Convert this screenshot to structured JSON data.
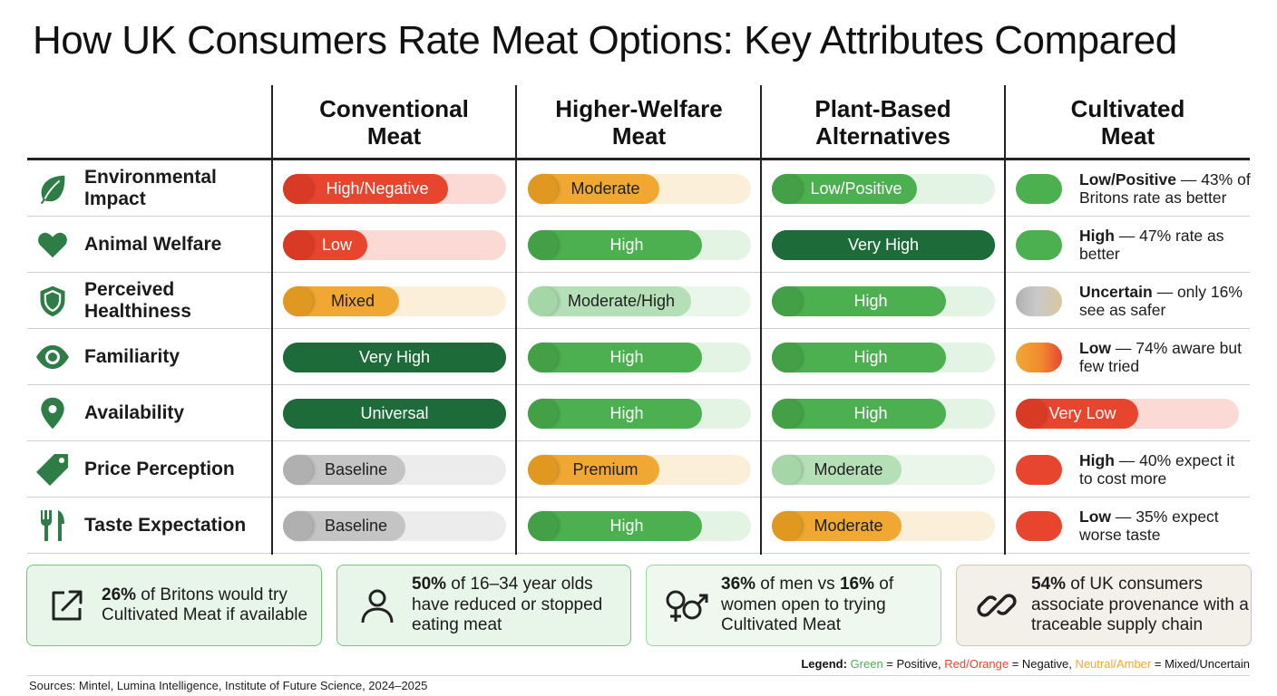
{
  "title": "How UK Consumers Rate Meat Options: Key Attributes Compared",
  "columns": [
    {
      "line1": "Conventional",
      "line2": "Meat"
    },
    {
      "line1": "Higher-Welfare",
      "line2": "Meat"
    },
    {
      "line1": "Plant-Based",
      "line2": "Alternatives"
    },
    {
      "line1": "Cultivated",
      "line2": "Meat"
    }
  ],
  "colors": {
    "green_dark": "#1e6b3a",
    "green": "#4caf50",
    "green_light": "#a5d6a7",
    "red": "#e8452f",
    "amber": "#f0a832",
    "grey": "#bdbdbd"
  },
  "rows": [
    {
      "label1": "Environmental",
      "label2": "Impact",
      "icon": "leaf-icon",
      "cells": [
        {
          "text": "High/Negative",
          "level": 0.74,
          "tone": "red"
        },
        {
          "text": "Moderate",
          "level": 0.59,
          "tone": "amber"
        },
        {
          "text": "Low/Positive",
          "level": 0.65,
          "tone": "green"
        }
      ],
      "cm": {
        "bold": "Low/Positive",
        "rest": " — 43% of Britons rate as better",
        "tone": "green"
      }
    },
    {
      "label1": "Animal Welfare",
      "label2": "",
      "icon": "heart-icon",
      "cells": [
        {
          "text": "Low",
          "level": 0.38,
          "tone": "red"
        },
        {
          "text": "High",
          "level": 0.78,
          "tone": "green"
        },
        {
          "text": "Very High",
          "level": 1.0,
          "tone": "green_dark"
        }
      ],
      "cm": {
        "bold": "High",
        "rest": " — 47% rate as better",
        "tone": "green"
      }
    },
    {
      "label1": "Perceived",
      "label2": "Healthiness",
      "icon": "shield-icon",
      "cells": [
        {
          "text": "Mixed",
          "level": 0.52,
          "tone": "amber"
        },
        {
          "text": "Moderate/High",
          "level": 0.73,
          "tone": "green_light"
        },
        {
          "text": "High",
          "level": 0.78,
          "tone": "green"
        }
      ],
      "cm": {
        "bold": "Uncertain",
        "rest": " — only 16% see as safer",
        "tone": "grey"
      }
    },
    {
      "label1": "Familiarity",
      "label2": "",
      "icon": "eye-icon",
      "cells": [
        {
          "text": "Very High",
          "level": 1.0,
          "tone": "green_dark"
        },
        {
          "text": "High",
          "level": 0.78,
          "tone": "green"
        },
        {
          "text": "High",
          "level": 0.78,
          "tone": "green"
        }
      ],
      "cm": {
        "bold": "Low",
        "rest": " — 74% aware but few tried",
        "tone": "amber"
      }
    },
    {
      "label1": "Availability",
      "label2": "",
      "icon": "location-pin-icon",
      "cells": [
        {
          "text": "Universal",
          "level": 1.0,
          "tone": "green_dark"
        },
        {
          "text": "High",
          "level": 0.78,
          "tone": "green"
        },
        {
          "text": "High",
          "level": 0.78,
          "tone": "green"
        }
      ],
      "cm": {
        "bold": "Very Low",
        "tone": "red",
        "level": 0.55,
        "full": true
      }
    },
    {
      "label1": "Price Perception",
      "label2": "",
      "icon": "price-tag-icon",
      "cells": [
        {
          "text": "Baseline",
          "level": 0.55,
          "tone": "grey"
        },
        {
          "text": "Premium",
          "level": 0.59,
          "tone": "amber"
        },
        {
          "text": "Moderate",
          "level": 0.58,
          "tone": "green_light"
        }
      ],
      "cm": {
        "bold": "High",
        "rest": " — 40% expect it to cost more",
        "tone": "red"
      }
    },
    {
      "label1": "Taste Expectation",
      "label2": "",
      "icon": "fork-knife-icon",
      "cells": [
        {
          "text": "Baseline",
          "level": 0.55,
          "tone": "grey"
        },
        {
          "text": "High",
          "level": 0.78,
          "tone": "green"
        },
        {
          "text": "Moderate",
          "level": 0.58,
          "tone": "amber"
        }
      ],
      "cm": {
        "bold": "Low",
        "rest": " — 35% expect worse taste",
        "tone": "red"
      }
    }
  ],
  "stats": [
    {
      "bold": "26%",
      "rest": " of Britons would try Cultivated Meat if available",
      "icon": "external-link-icon"
    },
    {
      "bold": "50%",
      "rest": " of 16–34 year olds have reduced or stopped eating meat",
      "icon": "person-icon"
    },
    {
      "bold": "36%",
      "mid": " of men vs ",
      "bold2": "16%",
      "rest": " of women open to trying Cultivated Meat",
      "icon": "gender-icon"
    },
    {
      "bold": "54%",
      "rest": " of UK consumers associate provenance with a traceable supply chain",
      "icon": "chain-link-icon"
    }
  ],
  "legend": {
    "label": "Legend:",
    "green": "Green",
    "green_meaning": " = Positive, ",
    "red": "Red/Orange",
    "red_meaning": " = Negative, ",
    "amber": "Neutral/Amber",
    "amber_meaning": " = Mixed/Uncertain"
  },
  "sources": "Sources: Mintel, Lumina Intelligence, Institute of Future Science, 2024–2025"
}
